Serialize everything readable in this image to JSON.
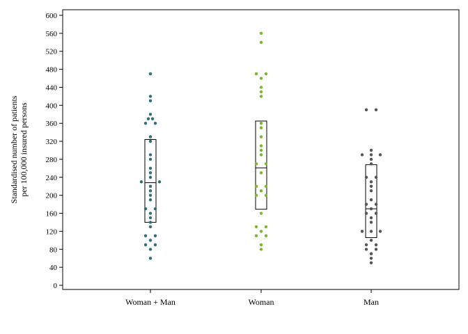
{
  "chart_data": {
    "type": "scatter",
    "ylabel_lines": [
      "Standardised number of patients",
      "per 100,000 insured persons"
    ],
    "ylim": [
      0,
      615
    ],
    "yticks": [
      0,
      40,
      80,
      120,
      160,
      200,
      240,
      280,
      320,
      360,
      400,
      440,
      480,
      520,
      560,
      600
    ],
    "grid": false,
    "categories": [
      "Woman + Man",
      "Woman",
      "Man"
    ],
    "series": [
      {
        "color": "#2e6f78",
        "box": {
          "q1": 140,
          "median": 228,
          "q3": 324
        },
        "points": [
          {
            "y": 470,
            "dx": 0
          },
          {
            "y": 420,
            "dx": 0
          },
          {
            "y": 410,
            "dx": 0
          },
          {
            "y": 380,
            "dx": 0
          },
          {
            "y": 370,
            "dx": -3
          },
          {
            "y": 370,
            "dx": 3
          },
          {
            "y": 360,
            "dx": -7
          },
          {
            "y": 360,
            "dx": 7
          },
          {
            "y": 330,
            "dx": 0
          },
          {
            "y": 320,
            "dx": 0
          },
          {
            "y": 290,
            "dx": 0
          },
          {
            "y": 280,
            "dx": 0
          },
          {
            "y": 260,
            "dx": 0
          },
          {
            "y": 250,
            "dx": 0
          },
          {
            "y": 240,
            "dx": 0
          },
          {
            "y": 230,
            "dx": -13
          },
          {
            "y": 230,
            "dx": 13
          },
          {
            "y": 220,
            "dx": 0
          },
          {
            "y": 210,
            "dx": 0
          },
          {
            "y": 200,
            "dx": 0
          },
          {
            "y": 190,
            "dx": 0
          },
          {
            "y": 170,
            "dx": -7
          },
          {
            "y": 170,
            "dx": 7
          },
          {
            "y": 160,
            "dx": 0
          },
          {
            "y": 150,
            "dx": 0
          },
          {
            "y": 140,
            "dx": 0
          },
          {
            "y": 130,
            "dx": 0
          },
          {
            "y": 110,
            "dx": -7
          },
          {
            "y": 110,
            "dx": 7
          },
          {
            "y": 100,
            "dx": 0
          },
          {
            "y": 90,
            "dx": -7
          },
          {
            "y": 90,
            "dx": 7
          },
          {
            "y": 80,
            "dx": 0
          },
          {
            "y": 60,
            "dx": 0
          }
        ]
      },
      {
        "color": "#7ab828",
        "box": {
          "q1": 169,
          "median": 261,
          "q3": 365
        },
        "points": [
          {
            "y": 560,
            "dx": 0
          },
          {
            "y": 540,
            "dx": 0
          },
          {
            "y": 470,
            "dx": -7
          },
          {
            "y": 470,
            "dx": 7
          },
          {
            "y": 460,
            "dx": 0
          },
          {
            "y": 440,
            "dx": 0
          },
          {
            "y": 430,
            "dx": 0
          },
          {
            "y": 420,
            "dx": 0
          },
          {
            "y": 360,
            "dx": 0
          },
          {
            "y": 350,
            "dx": 0
          },
          {
            "y": 330,
            "dx": 0
          },
          {
            "y": 310,
            "dx": 0
          },
          {
            "y": 300,
            "dx": 0
          },
          {
            "y": 290,
            "dx": 0
          },
          {
            "y": 270,
            "dx": -7
          },
          {
            "y": 270,
            "dx": 7
          },
          {
            "y": 250,
            "dx": 0
          },
          {
            "y": 220,
            "dx": -7
          },
          {
            "y": 220,
            "dx": 7
          },
          {
            "y": 210,
            "dx": 0
          },
          {
            "y": 200,
            "dx": -7
          },
          {
            "y": 200,
            "dx": 7
          },
          {
            "y": 160,
            "dx": 0
          },
          {
            "y": 130,
            "dx": -7
          },
          {
            "y": 130,
            "dx": 7
          },
          {
            "y": 120,
            "dx": 0
          },
          {
            "y": 110,
            "dx": -7
          },
          {
            "y": 110,
            "dx": 7
          },
          {
            "y": 90,
            "dx": 0
          },
          {
            "y": 80,
            "dx": 0
          }
        ]
      },
      {
        "color": "#555555",
        "box": {
          "q1": 106,
          "median": 170,
          "q3": 268
        },
        "points": [
          {
            "y": 390,
            "dx": -7
          },
          {
            "y": 390,
            "dx": 7
          },
          {
            "y": 300,
            "dx": 0
          },
          {
            "y": 290,
            "dx": -13
          },
          {
            "y": 290,
            "dx": 0
          },
          {
            "y": 290,
            "dx": 13
          },
          {
            "y": 280,
            "dx": 0
          },
          {
            "y": 270,
            "dx": 0
          },
          {
            "y": 240,
            "dx": -7
          },
          {
            "y": 240,
            "dx": 7
          },
          {
            "y": 230,
            "dx": 0
          },
          {
            "y": 220,
            "dx": 0
          },
          {
            "y": 210,
            "dx": 0
          },
          {
            "y": 190,
            "dx": 0
          },
          {
            "y": 180,
            "dx": -7
          },
          {
            "y": 180,
            "dx": 7
          },
          {
            "y": 170,
            "dx": 0
          },
          {
            "y": 160,
            "dx": -7
          },
          {
            "y": 160,
            "dx": 7
          },
          {
            "y": 150,
            "dx": 0
          },
          {
            "y": 140,
            "dx": 0
          },
          {
            "y": 120,
            "dx": -13
          },
          {
            "y": 120,
            "dx": 0
          },
          {
            "y": 120,
            "dx": 13
          },
          {
            "y": 100,
            "dx": 0
          },
          {
            "y": 90,
            "dx": -7
          },
          {
            "y": 90,
            "dx": 7
          },
          {
            "y": 80,
            "dx": -7
          },
          {
            "y": 80,
            "dx": 7
          },
          {
            "y": 70,
            "dx": 0
          },
          {
            "y": 60,
            "dx": 0
          },
          {
            "y": 50,
            "dx": 0
          }
        ]
      }
    ]
  }
}
